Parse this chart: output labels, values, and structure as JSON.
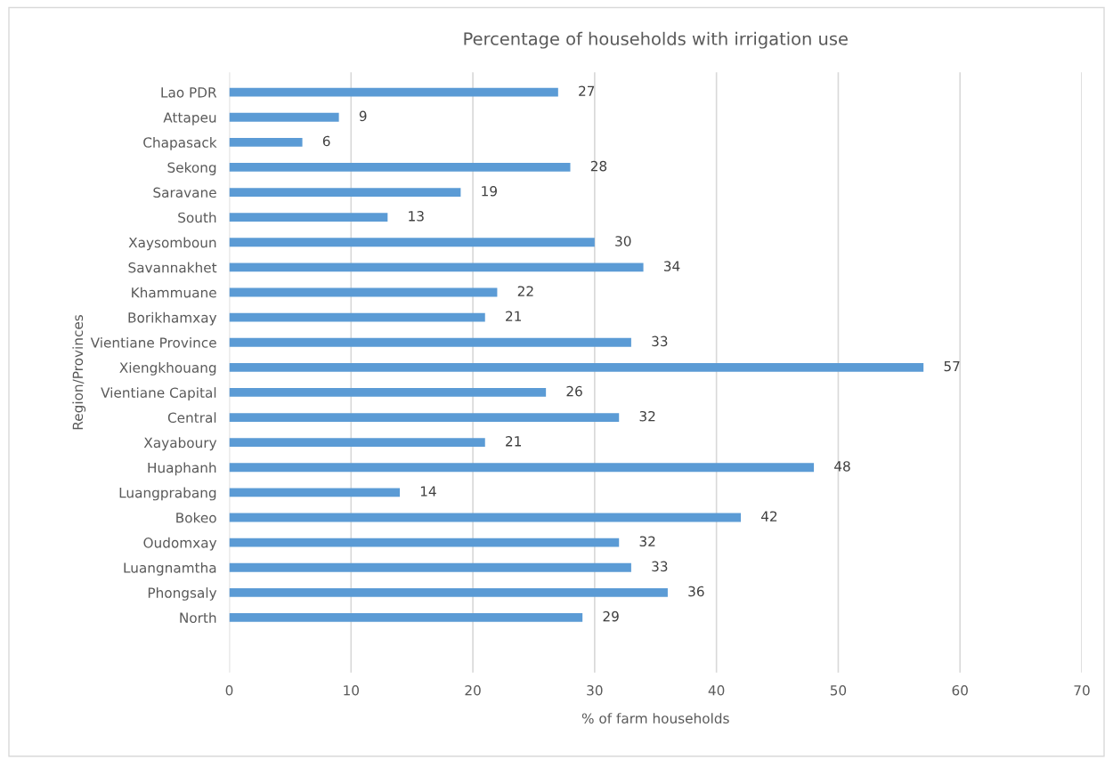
{
  "chart_data": {
    "type": "bar",
    "orientation": "horizontal",
    "title": "Percentage of households with irrigation use",
    "xlabel": "% of farm households",
    "ylabel": "Region/Provinces",
    "categories": [
      "Lao PDR",
      "Attapeu",
      "Chapasack",
      "Sekong",
      "Saravane",
      "South",
      "Xaysomboun",
      "Savannakhet",
      "Khammuane",
      "Borikhamxay",
      "Vientiane Province",
      "Xiengkhouang",
      "Vientiane Capital",
      "Central",
      "Xayaboury",
      "Huaphanh",
      "Luangprabang",
      "Bokeo",
      "Oudomxay",
      "Luangnamtha",
      "Phongsaly",
      "North"
    ],
    "values": [
      27,
      9,
      6,
      28,
      19,
      13,
      30,
      34,
      22,
      21,
      33,
      57,
      26,
      32,
      21,
      48,
      14,
      42,
      32,
      33,
      36,
      29
    ],
    "color": "#5b9bd5",
    "data_labels": true,
    "xlim": [
      0,
      70
    ],
    "xticks": [
      0,
      10,
      20,
      30,
      40,
      50,
      60,
      70
    ],
    "grid": "x"
  }
}
